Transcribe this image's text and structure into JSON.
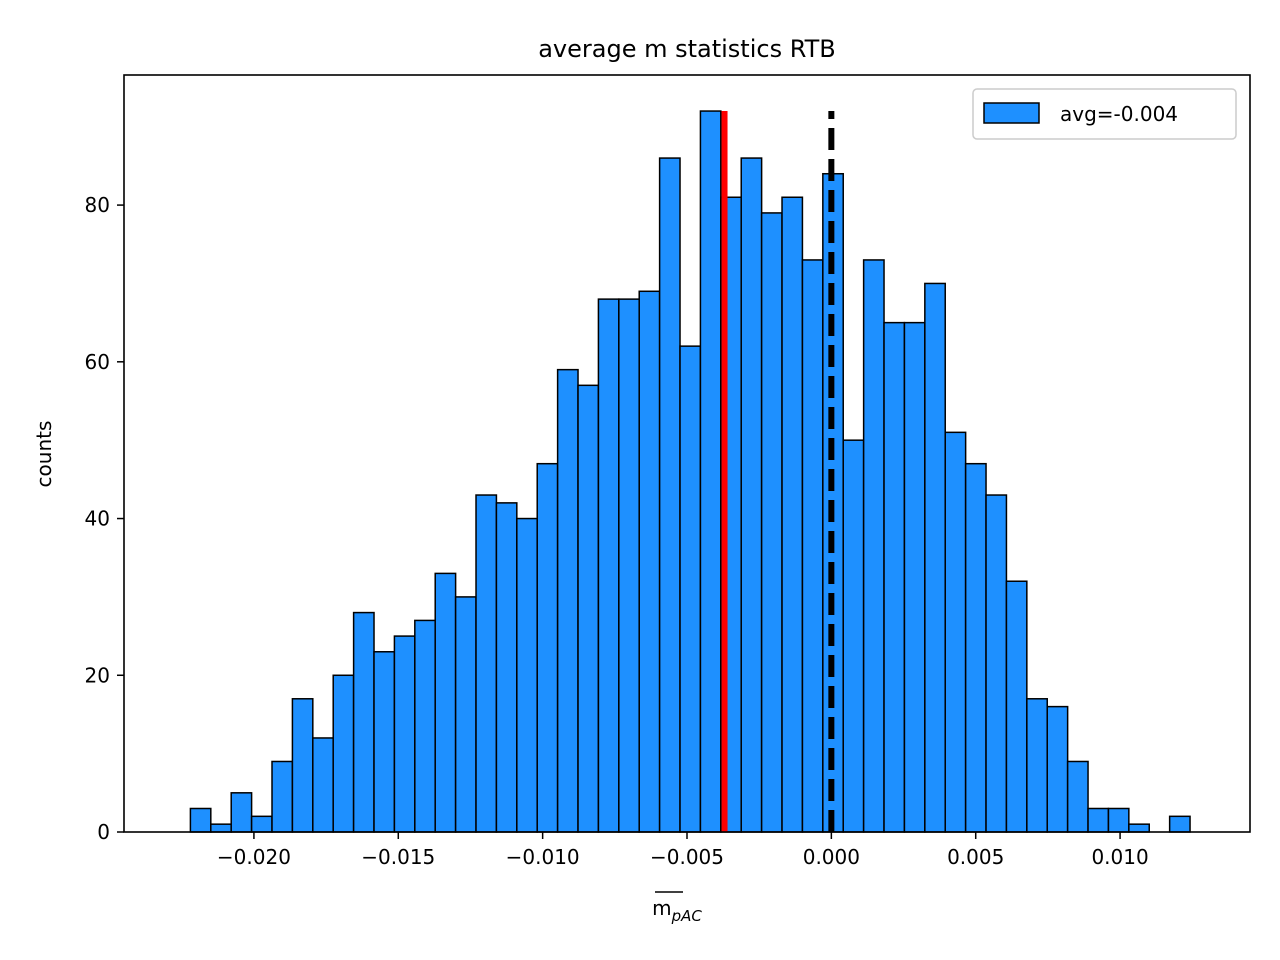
{
  "chart_data": {
    "type": "bar",
    "title": "average m statistics RTB",
    "xlabel": "m",
    "xlabel_subscript": "pAC",
    "ylabel": "counts",
    "xlim": [
      -0.0245,
      0.0145
    ],
    "ylim": [
      0,
      96.6
    ],
    "xticks": [
      -0.02,
      -0.015,
      -0.01,
      -0.005,
      0.0,
      0.005,
      0.01
    ],
    "xtick_labels": [
      "−0.020",
      "−0.015",
      "−0.010",
      "−0.005",
      "0.000",
      "0.005",
      "0.010"
    ],
    "yticks": [
      0,
      20,
      40,
      60,
      80
    ],
    "ytick_labels": [
      "0",
      "20",
      "40",
      "60",
      "80"
    ],
    "bin_start": -0.0222,
    "bin_width": 0.0007066,
    "values": [
      3,
      1,
      5,
      2,
      9,
      17,
      12,
      20,
      28,
      23,
      25,
      27,
      33,
      30,
      43,
      42,
      40,
      47,
      59,
      57,
      68,
      68,
      69,
      86,
      62,
      92,
      81,
      86,
      79,
      81,
      73,
      84,
      50,
      73,
      65,
      65,
      70,
      51,
      47,
      43,
      32,
      17,
      16,
      9,
      3,
      3,
      1,
      0,
      2
    ],
    "bar_color": "#1e90ff",
    "edge_color": "#000000",
    "legend": {
      "label": "avg=-0.004",
      "placement": "top-right"
    },
    "vlines": [
      {
        "x": -0.0037,
        "color": "#ff0000",
        "style": "solid",
        "ymax": 92
      },
      {
        "x": 0.0,
        "color": "#000000",
        "style": "dashed",
        "ymax": 92
      }
    ],
    "grid": false
  }
}
